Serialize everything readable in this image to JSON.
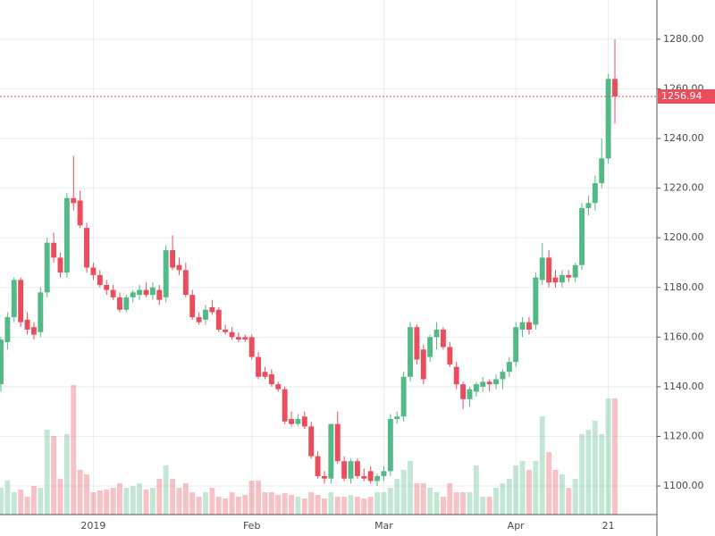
{
  "chart_data": {
    "type": "candlestick",
    "categories": [
      null,
      null,
      null,
      null,
      null,
      null,
      null,
      null,
      null,
      null,
      null,
      null,
      null,
      null,
      "2019",
      null,
      null,
      null,
      null,
      null,
      null,
      null,
      null,
      null,
      null,
      null,
      null,
      null,
      null,
      null,
      null,
      null,
      null,
      null,
      null,
      null,
      null,
      null,
      "Feb",
      null,
      null,
      null,
      null,
      null,
      null,
      null,
      null,
      null,
      null,
      null,
      null,
      null,
      null,
      null,
      null,
      null,
      null,
      null,
      "Mar",
      null,
      null,
      null,
      null,
      null,
      null,
      null,
      null,
      null,
      null,
      null,
      null,
      null,
      null,
      null,
      null,
      null,
      null,
      null,
      "Apr",
      null,
      null,
      null,
      null,
      null,
      null,
      null,
      null,
      null,
      null,
      null,
      null,
      null,
      "21",
      null
    ],
    "open": [
      1141,
      1158,
      1168,
      1183,
      1167,
      1164,
      1162,
      1178,
      1198,
      1192,
      1186,
      1216,
      1215,
      1204,
      1188,
      1185,
      1181,
      1179,
      1176,
      1171,
      1176,
      1177,
      1179,
      1177,
      1179,
      1176,
      1195,
      1189,
      1187,
      1177,
      1168,
      1167,
      1172,
      1171,
      1163,
      1162,
      1160,
      1160,
      1160,
      1152,
      1146,
      1145,
      1141,
      1139,
      1127,
      1125,
      1128,
      1124,
      1112,
      1104,
      1103,
      1125,
      1110,
      1103,
      1110,
      1104,
      1106,
      1102,
      1104,
      1106,
      1127,
      1128,
      1144,
      1164,
      1155,
      1152,
      1160,
      1163,
      1156,
      1148,
      1141,
      1135,
      1138,
      1140,
      1142,
      1141,
      1143,
      1146,
      1150,
      1163,
      1166,
      1165,
      1183,
      1192,
      1184,
      1182,
      1185,
      1184,
      1189,
      1212,
      1214,
      1222,
      1232,
      1264
    ],
    "high": [
      1160,
      1170,
      1184,
      1184,
      1170,
      1166,
      1180,
      1200,
      1202,
      1194,
      1218,
      1233,
      1219,
      1206,
      1190,
      1187,
      1183,
      1181,
      1178,
      1177,
      1179,
      1181,
      1182,
      1182,
      1181,
      1197,
      1201,
      1192,
      1190,
      1179,
      1170,
      1173,
      1175,
      1172,
      1165,
      1164,
      1162,
      1161,
      1161,
      1154,
      1148,
      1147,
      1142,
      1140,
      1130,
      1129,
      1130,
      1126,
      1114,
      1106,
      1125,
      1130,
      1112,
      1111,
      1111,
      1107,
      1108,
      1105,
      1108,
      1129,
      1130,
      1146,
      1166,
      1165,
      1157,
      1161,
      1166,
      1164,
      1158,
      1150,
      1142,
      1140,
      1142,
      1144,
      1143,
      1145,
      1147,
      1152,
      1166,
      1168,
      1168,
      1186,
      1198,
      1195,
      1187,
      1187,
      1187,
      1190,
      1214,
      1217,
      1225,
      1240,
      1266,
      1280
    ],
    "low": [
      1138,
      1155,
      1166,
      1164,
      1161,
      1159,
      1160,
      1176,
      1190,
      1184,
      1184,
      1211,
      1204,
      1186,
      1183,
      1180,
      1177,
      1175,
      1170,
      1170,
      1174,
      1175,
      1176,
      1175,
      1173,
      1174,
      1187,
      1185,
      1176,
      1167,
      1165,
      1165,
      1169,
      1162,
      1161,
      1159,
      1158,
      1158,
      1151,
      1143,
      1143,
      1140,
      1138,
      1125,
      1124,
      1124,
      1123,
      1111,
      1103,
      1101,
      1101,
      1109,
      1102,
      1101,
      1103,
      1102,
      1101,
      1100,
      1102,
      1104,
      1125,
      1126,
      1142,
      1149,
      1141,
      1150,
      1155,
      1155,
      1148,
      1139,
      1131,
      1132,
      1136,
      1138,
      1138,
      1139,
      1139,
      1144,
      1148,
      1160,
      1161,
      1163,
      1181,
      1180,
      1180,
      1180,
      1182,
      1182,
      1187,
      1209,
      1211,
      1220,
      1230,
      1246
    ],
    "close": [
      1159,
      1168,
      1183,
      1166,
      1163,
      1161,
      1178,
      1198,
      1192,
      1186,
      1216,
      1214,
      1205,
      1188,
      1185,
      1181,
      1179,
      1176,
      1171,
      1176,
      1178,
      1179,
      1177,
      1180,
      1175,
      1195,
      1188,
      1187,
      1177,
      1168,
      1166,
      1171,
      1170,
      1163,
      1162,
      1160,
      1159,
      1159,
      1152,
      1144,
      1144,
      1141,
      1139,
      1126,
      1125,
      1127,
      1124,
      1112,
      1104,
      1103,
      1125,
      1110,
      1103,
      1110,
      1104,
      1103,
      1102,
      1104,
      1106,
      1127,
      1128,
      1144,
      1164,
      1151,
      1143,
      1160,
      1163,
      1156,
      1149,
      1141,
      1135,
      1139,
      1141,
      1142,
      1141,
      1143,
      1146,
      1150,
      1164,
      1166,
      1163,
      1184,
      1192,
      1182,
      1182,
      1185,
      1184,
      1189,
      1212,
      1214,
      1222,
      1232,
      1264,
      1256.94
    ],
    "volume": [
      30,
      38,
      25,
      28,
      20,
      32,
      30,
      95,
      88,
      40,
      90,
      145,
      50,
      45,
      25,
      27,
      28,
      30,
      35,
      30,
      32,
      35,
      28,
      30,
      40,
      55,
      40,
      30,
      35,
      25,
      20,
      25,
      30,
      20,
      18,
      25,
      20,
      22,
      38,
      38,
      25,
      25,
      22,
      24,
      22,
      20,
      18,
      25,
      22,
      18,
      25,
      20,
      20,
      22,
      20,
      18,
      20,
      25,
      25,
      30,
      40,
      50,
      60,
      35,
      35,
      30,
      25,
      20,
      35,
      25,
      25,
      25,
      55,
      20,
      20,
      30,
      35,
      40,
      55,
      60,
      50,
      60,
      110,
      70,
      50,
      45,
      30,
      40,
      90,
      95,
      105,
      90,
      130,
      130
    ],
    "up_color": "#53b987",
    "down_color": "#eb4d5c",
    "ylim": [
      1088.5,
      1295.8
    ],
    "yticks": [
      {
        "value": 1100,
        "label": "1100.00"
      },
      {
        "value": 1120,
        "label": "1120.00"
      },
      {
        "value": 1140,
        "label": "1140.00"
      },
      {
        "value": 1160,
        "label": "1160.00"
      },
      {
        "value": 1180,
        "label": "1180.00"
      },
      {
        "value": 1200,
        "label": "1200.00"
      },
      {
        "value": 1220,
        "label": "1220.00"
      },
      {
        "value": 1240,
        "label": "1240.00"
      },
      {
        "value": 1260,
        "label": "1260.00"
      },
      {
        "value": 1280,
        "label": "1280.00"
      }
    ],
    "grid": true
  }
}
